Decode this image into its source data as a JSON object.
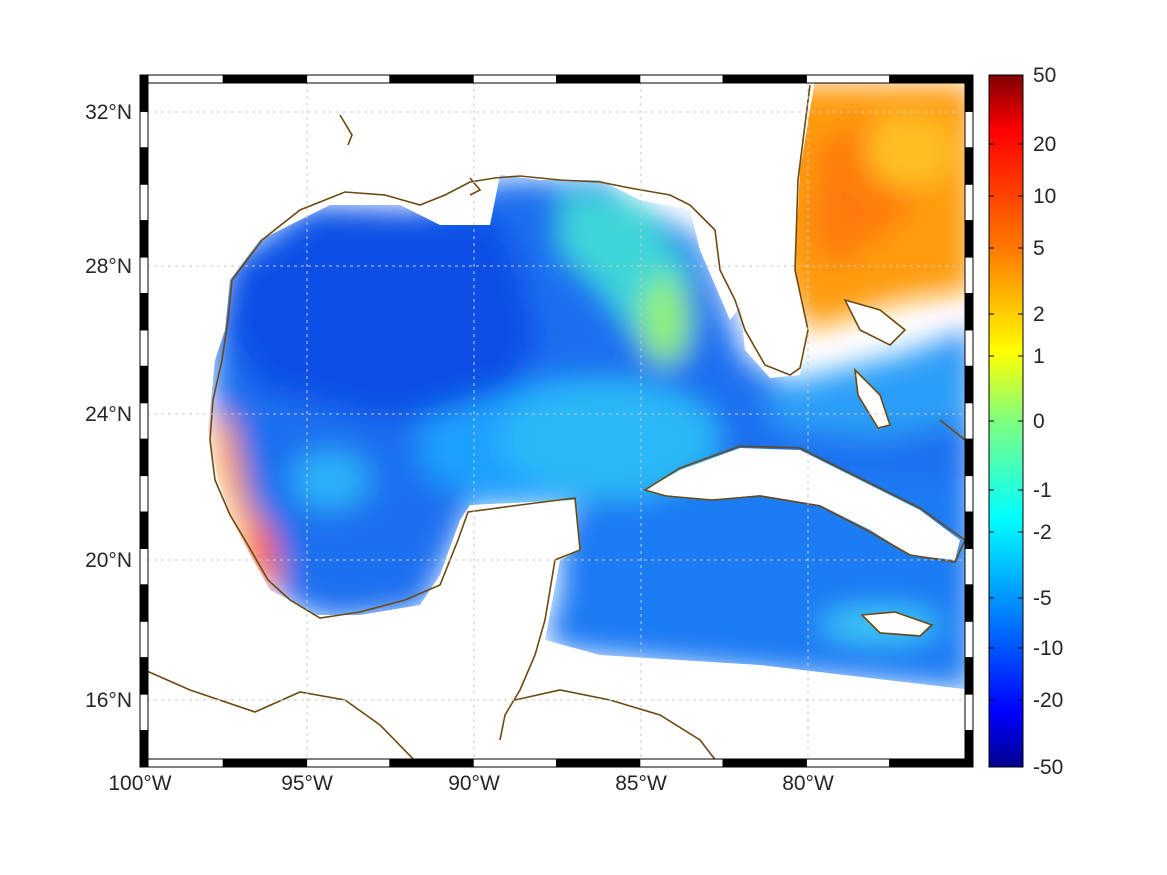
{
  "map": {
    "x_ticks": [
      "100°W",
      "95°W",
      "90°W",
      "85°W",
      "80°W"
    ],
    "y_ticks": [
      "32°N",
      "28°N",
      "24°N",
      "20°N",
      "16°N"
    ],
    "coastline_color": "#6b4a12",
    "grid_color": "#c8c8c8",
    "frame_colors": [
      "#000000",
      "#ffffff"
    ]
  },
  "colorbar": {
    "ticks": [
      "50",
      "20",
      "10",
      "5",
      "2",
      "1",
      "0",
      "-1",
      "-2",
      "-5",
      "-10",
      "-20",
      "-50"
    ],
    "colors": [
      "#7f0000",
      "#ff0000",
      "#ff8000",
      "#ffff00",
      "#80ff80",
      "#00ffff",
      "#0080ff",
      "#0000ff",
      "#00008f"
    ]
  }
}
